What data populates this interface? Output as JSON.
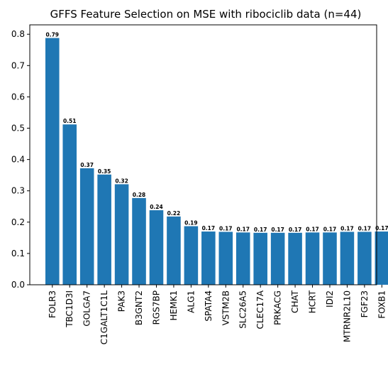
{
  "chart_data": {
    "type": "bar",
    "title": "GFFS Feature Selection on MSE with ribociclib data (n=44)",
    "xlabel": "",
    "ylabel": "",
    "ylim": [
      0,
      0.83
    ],
    "yticks": [
      0.0,
      0.1,
      0.2,
      0.3,
      0.4,
      0.5,
      0.6,
      0.7,
      0.8
    ],
    "ytick_labels": [
      "0.0",
      "0.1",
      "0.2",
      "0.3",
      "0.4",
      "0.5",
      "0.6",
      "0.7",
      "0.8"
    ],
    "grid": false,
    "legend": "none",
    "bar_color": "#1f77b4",
    "categories": [
      "FOLR3",
      "TBC1D3I",
      "GOLGA7",
      "C1GALT1C1L",
      "PAK3",
      "B3GNT2",
      "RGS7BP",
      "HEMK1",
      "ALG1",
      "SPATA4",
      "VSTM2B",
      "SLC26A5",
      "CLEC17A",
      "PRKACG",
      "CHAT",
      "HCRT",
      "IDI2",
      "MTRNR2L10",
      "FGF23",
      "FOXB1"
    ],
    "values": [
      0.788,
      0.512,
      0.372,
      0.352,
      0.321,
      0.277,
      0.238,
      0.218,
      0.187,
      0.17,
      0.169,
      0.167,
      0.166,
      0.166,
      0.166,
      0.167,
      0.167,
      0.169,
      0.169,
      0.17
    ],
    "value_labels": [
      "0.79",
      "0.51",
      "0.37",
      "0.35",
      "0.32",
      "0.28",
      "0.24",
      "0.22",
      "0.19",
      "0.17",
      "0.17",
      "0.17",
      "0.17",
      "0.17",
      "0.17",
      "0.17",
      "0.17",
      "0.17",
      "0.17",
      "0.17"
    ]
  }
}
